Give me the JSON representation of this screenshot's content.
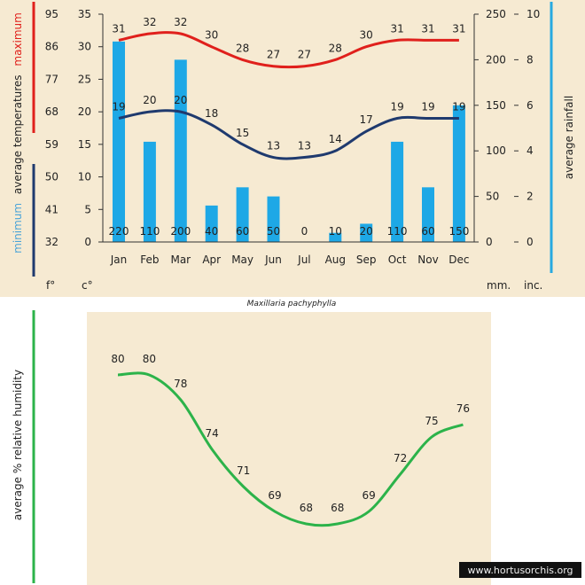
{
  "caption": "Maxillaria pachyphylla",
  "watermark": "www.hortusorchis.org",
  "colors": {
    "background": "#f6ead2",
    "max_line": "#e0201c",
    "min_line": "#1f3a6e",
    "bars": "#1ea8e6",
    "humidity_line": "#2cb34a",
    "rain_bar": "#28a9e0"
  },
  "chart_data": [
    {
      "type": "bar",
      "categories": [
        "Jan",
        "Feb",
        "Mar",
        "Apr",
        "May",
        "Jun",
        "Jul",
        "Aug",
        "Sep",
        "Oct",
        "Nov",
        "Dec"
      ],
      "series": [
        {
          "name": "average rainfall",
          "unit": "mm.",
          "values": [
            220,
            110,
            200,
            40,
            60,
            50,
            0,
            10,
            20,
            110,
            60,
            150
          ]
        }
      ],
      "axis_labels": {
        "fahrenheit_unit": "f°",
        "celsius_unit": "c°",
        "mm_unit": "mm.",
        "inch_unit": "inc.",
        "temp_axis_maximum": "maximum",
        "temp_axis_temperatures": "average temperatures",
        "temp_axis_minimum": "minimum",
        "rain_axis": "average rainfall"
      },
      "celsius_ticks": [
        0,
        5,
        10,
        15,
        20,
        25,
        30,
        35
      ],
      "fahrenheit_ticks": [
        32,
        41,
        50,
        59,
        68,
        77,
        86,
        95
      ],
      "mm_ticks": [
        0,
        50,
        100,
        150,
        200,
        250
      ],
      "inch_ticks": [
        0,
        2,
        4,
        6,
        8,
        10
      ],
      "ylim_celsius": [
        0,
        35
      ],
      "ylim_mm": [
        0,
        250
      ]
    },
    {
      "type": "line",
      "categories": [
        "Jan",
        "Feb",
        "Mar",
        "Apr",
        "May",
        "Jun",
        "Jul",
        "Aug",
        "Sep",
        "Oct",
        "Nov",
        "Dec"
      ],
      "series": [
        {
          "name": "maximum",
          "values": [
            31,
            32,
            32,
            30,
            28,
            27,
            27,
            28,
            30,
            31,
            31,
            31
          ]
        },
        {
          "name": "minimum",
          "values": [
            19,
            20,
            20,
            18,
            15,
            13,
            13,
            14,
            17,
            19,
            19,
            19
          ]
        }
      ],
      "ylim": [
        0,
        35
      ]
    },
    {
      "type": "line",
      "categories": [
        "Jan",
        "Feb",
        "Mar",
        "Apr",
        "May",
        "Jun",
        "Jul",
        "Aug",
        "Sep",
        "Oct",
        "Nov",
        "Dec"
      ],
      "series": [
        {
          "name": "average % relative humidity",
          "values": [
            80,
            80,
            78,
            74,
            71,
            69,
            68,
            68,
            69,
            72,
            75,
            76
          ]
        }
      ],
      "axis_label": "average % relative humidity",
      "ylim": [
        66,
        82
      ]
    }
  ]
}
